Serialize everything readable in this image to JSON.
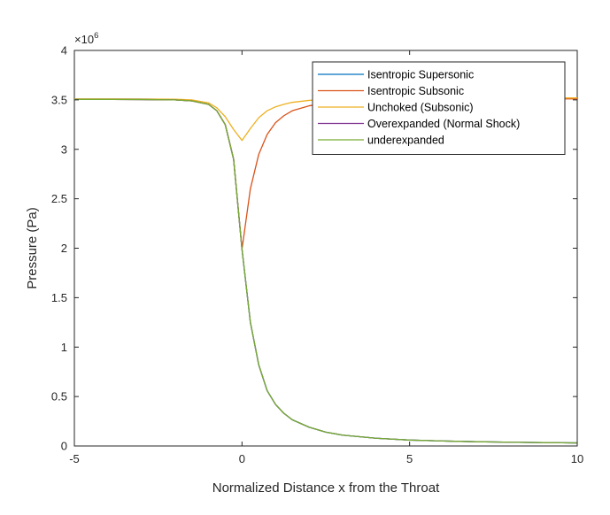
{
  "chart_data": {
    "type": "line",
    "title": "",
    "xlabel": "Normalized Distance x from the Throat",
    "ylabel": "Pressure (Pa)",
    "xlim": [
      -5,
      10
    ],
    "ylim": [
      0,
      4000000
    ],
    "y_exponent_label": "×10",
    "y_exponent_power": "6",
    "xticks": [
      -5,
      0,
      5,
      10
    ],
    "xtick_labels": [
      "-5",
      "0",
      "5",
      "10"
    ],
    "yticks": [
      0,
      500000,
      1000000,
      1500000,
      2000000,
      2500000,
      3000000,
      3500000,
      4000000
    ],
    "ytick_labels": [
      "0",
      "0.5",
      "1",
      "1.5",
      "2",
      "2.5",
      "3",
      "3.5",
      "4"
    ],
    "grid": false,
    "legend_position": "top-right",
    "x": [
      -5,
      -4,
      -3,
      -2,
      -1.5,
      -1,
      -0.75,
      -0.5,
      -0.25,
      0,
      0.25,
      0.5,
      0.75,
      1,
      1.25,
      1.5,
      2,
      2.5,
      3,
      4,
      5,
      6,
      7,
      8,
      9,
      10
    ],
    "series": [
      {
        "name": "Isentropic Supersonic",
        "color": "#0072BD",
        "values": [
          3505000,
          3505000,
          3504000,
          3500000,
          3490000,
          3455000,
          3390000,
          3250000,
          2900000,
          1990000,
          1250000,
          820000,
          560000,
          420000,
          330000,
          265000,
          190000,
          140000,
          110000,
          78000,
          60000,
          50000,
          43000,
          38000,
          34000,
          31000
        ]
      },
      {
        "name": "Isentropic Subsonic",
        "color": "#D95319",
        "values": [
          3505000,
          3505000,
          3504000,
          3500000,
          3490000,
          3455000,
          3390000,
          3250000,
          2900000,
          1990000,
          2600000,
          2950000,
          3150000,
          3270000,
          3340000,
          3390000,
          3440000,
          3465000,
          3480000,
          3495000,
          3502000,
          3506000,
          3508000,
          3509000,
          3510000,
          3510000
        ]
      },
      {
        "name": "Unchoked (Subsonic)",
        "color": "#EDB120",
        "values": [
          3510000,
          3510000,
          3509000,
          3507000,
          3500000,
          3470000,
          3420000,
          3330000,
          3200000,
          3090000,
          3210000,
          3320000,
          3390000,
          3430000,
          3455000,
          3475000,
          3495000,
          3505000,
          3510000,
          3515000,
          3518000,
          3520000,
          3520000,
          3520000,
          3520000,
          3520000
        ]
      },
      {
        "name": "Overexpanded (Normal Shock)",
        "color": "#7E2F8E",
        "values": [
          3505000,
          3505000,
          3504000,
          3500000,
          3490000,
          3455000,
          3390000,
          3250000,
          2900000,
          1990000,
          1250000,
          820000,
          560000,
          420000,
          330000,
          265000,
          190000,
          140000,
          110000,
          78000,
          60000,
          50000,
          43000,
          38000,
          34000,
          31000
        ]
      },
      {
        "name": "underexpanded",
        "color": "#77AC30",
        "values": [
          3505000,
          3505000,
          3504000,
          3500000,
          3490000,
          3455000,
          3390000,
          3250000,
          2900000,
          1990000,
          1250000,
          820000,
          560000,
          420000,
          330000,
          265000,
          190000,
          140000,
          110000,
          78000,
          60000,
          50000,
          43000,
          38000,
          34000,
          31000
        ]
      }
    ]
  }
}
